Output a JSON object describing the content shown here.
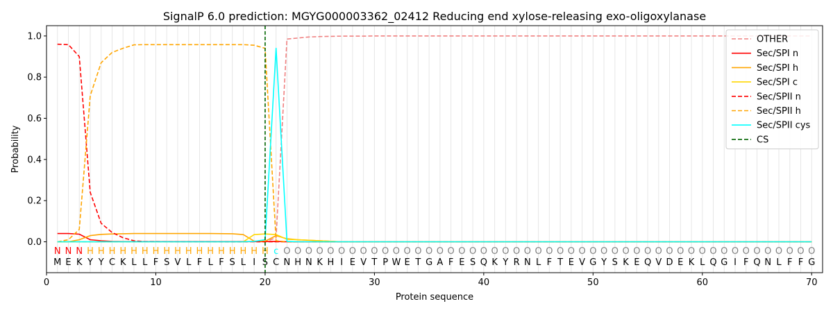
{
  "chart_data": {
    "type": "line",
    "title": "SignalP 6.0 prediction: MGYG000003362_02412 Reducing end xylose-releasing exo-oligoxylanase",
    "xlabel": "Protein sequence",
    "ylabel": "Probability",
    "xlim": [
      0,
      71
    ],
    "ylim": [
      -0.15,
      1.05
    ],
    "xticks": [
      "0",
      "10",
      "20",
      "30",
      "40",
      "50",
      "60",
      "70"
    ],
    "yticks": [
      "0.0",
      "0.2",
      "0.4",
      "0.6",
      "0.8",
      "1.0"
    ],
    "grid": "vertical lines at each residue",
    "legend_position": "top-right",
    "sequence": [
      "M",
      "E",
      "K",
      "Y",
      "Y",
      "C",
      "K",
      "L",
      "L",
      "F",
      "S",
      "V",
      "L",
      "F",
      "L",
      "F",
      "S",
      "L",
      "I",
      "S",
      "C",
      "N",
      "H",
      "N",
      "K",
      "H",
      "I",
      "E",
      "V",
      "T",
      "P",
      "W",
      "E",
      "T",
      "G",
      "A",
      "F",
      "E",
      "S",
      "Q",
      "K",
      "Y",
      "R",
      "N",
      "L",
      "F",
      "T",
      "E",
      "V",
      "G",
      "Y",
      "S",
      "K",
      "E",
      "Q",
      "V",
      "D",
      "E",
      "K",
      "L",
      "Q",
      "G",
      "I",
      "F",
      "Q",
      "N",
      "L",
      "F",
      "F",
      "G"
    ],
    "region_labels": [
      "N",
      "N",
      "N",
      "H",
      "H",
      "H",
      "H",
      "H",
      "H",
      "H",
      "H",
      "H",
      "H",
      "H",
      "H",
      "H",
      "H",
      "H",
      "H",
      "H",
      "c",
      "O",
      "O",
      "O",
      "O",
      "O",
      "O",
      "O",
      "O",
      "O",
      "O",
      "O",
      "O",
      "O",
      "O",
      "O",
      "O",
      "O",
      "O",
      "O",
      "O",
      "O",
      "O",
      "O",
      "O",
      "O",
      "O",
      "O",
      "O",
      "O",
      "O",
      "O",
      "O",
      "O",
      "O",
      "O",
      "O",
      "O",
      "O",
      "O",
      "O",
      "O",
      "O",
      "O",
      "O",
      "O",
      "O",
      "O",
      "O",
      "O"
    ],
    "region_colors": {
      "N": "#ff0000",
      "H": "#ffa500",
      "c": "#00ffff",
      "O": "#808080"
    },
    "cleavage_site": 20,
    "series": [
      {
        "name": "OTHER",
        "color": "#f08080",
        "dash": true,
        "x": [
          1,
          2,
          3,
          4,
          5,
          6,
          7,
          8,
          9,
          10,
          11,
          12,
          13,
          14,
          15,
          16,
          17,
          18,
          19,
          20,
          21,
          22,
          23,
          24,
          25,
          26,
          27,
          28,
          29,
          30,
          70
        ],
        "values": [
          0,
          0,
          0,
          0,
          0,
          0,
          0,
          0,
          0,
          0,
          0,
          0,
          0,
          0,
          0,
          0,
          0,
          0,
          0,
          0,
          0.02,
          0.985,
          0.99,
          0.995,
          0.997,
          0.998,
          0.999,
          0.999,
          0.999,
          1.0,
          1.0
        ]
      },
      {
        "name": "Sec/SPI n",
        "color": "#ff0000",
        "dash": false,
        "x": [
          1,
          2,
          3,
          4,
          5,
          6,
          7,
          20,
          21,
          22,
          70
        ],
        "values": [
          0.04,
          0.04,
          0.037,
          0.01,
          0.005,
          0.002,
          0.001,
          0.001,
          0.002,
          0,
          0
        ]
      },
      {
        "name": "Sec/SPI h",
        "color": "#ffa500",
        "dash": false,
        "x": [
          1,
          2,
          3,
          4,
          5,
          6,
          7,
          8,
          9,
          10,
          15,
          17,
          18,
          19,
          20,
          21,
          22,
          23,
          25,
          27,
          70
        ],
        "values": [
          0,
          0,
          0.01,
          0.03,
          0.036,
          0.038,
          0.039,
          0.04,
          0.04,
          0.04,
          0.04,
          0.039,
          0.035,
          0.003,
          0.003,
          0.03,
          0.015,
          0.01,
          0.005,
          0,
          0
        ]
      },
      {
        "name": "Sec/SPI c",
        "color": "#ffd700",
        "dash": false,
        "x": [
          1,
          18,
          19,
          20,
          21,
          22,
          23,
          25,
          27,
          70
        ],
        "values": [
          0,
          0,
          0.035,
          0.038,
          0.035,
          0.012,
          0.01,
          0.005,
          0,
          0
        ]
      },
      {
        "name": "Sec/SPII n",
        "color": "#ff0000",
        "dash": true,
        "x": [
          1,
          2,
          3,
          4,
          5,
          6,
          7,
          8,
          9,
          20,
          21,
          70
        ],
        "values": [
          0.96,
          0.958,
          0.9,
          0.24,
          0.09,
          0.045,
          0.02,
          0.005,
          0.001,
          0,
          0,
          0
        ]
      },
      {
        "name": "Sec/SPII h",
        "color": "#ffa500",
        "dash": true,
        "x": [
          1,
          2,
          3,
          4,
          5,
          6,
          7,
          8,
          9,
          10,
          15,
          18,
          19,
          20,
          21,
          22,
          70
        ],
        "values": [
          0,
          0.01,
          0.06,
          0.71,
          0.87,
          0.92,
          0.94,
          0.957,
          0.958,
          0.958,
          0.958,
          0.958,
          0.955,
          0.94,
          0.005,
          0,
          0
        ]
      },
      {
        "name": "Sec/SPII cys",
        "color": "#00ffff",
        "dash": false,
        "x": [
          1,
          18,
          19,
          20,
          21,
          22,
          23,
          70
        ],
        "values": [
          0,
          0,
          0.002,
          0.01,
          0.94,
          0.002,
          0,
          0
        ]
      },
      {
        "name": "CS",
        "color": "#006400",
        "dash": true,
        "x": [],
        "values": []
      }
    ]
  }
}
